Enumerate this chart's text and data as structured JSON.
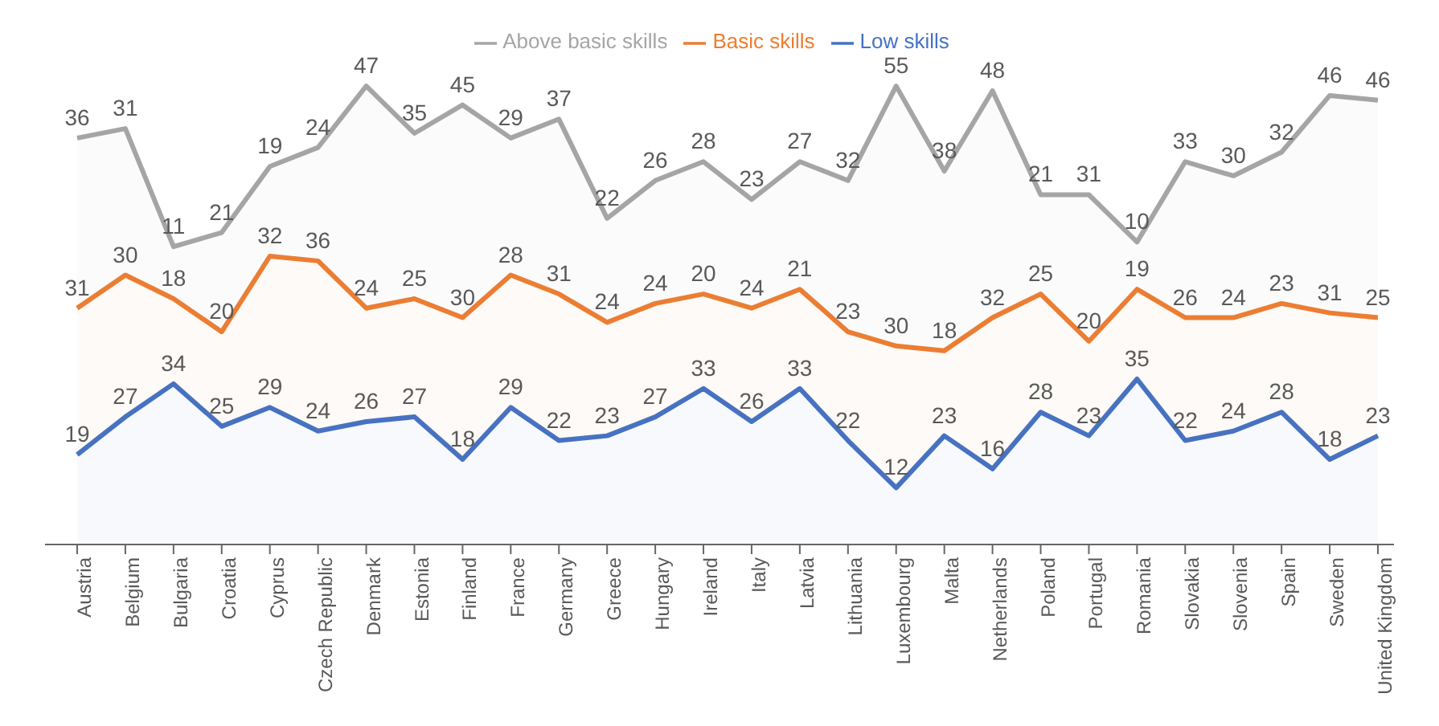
{
  "chart_data": {
    "type": "area",
    "stacked": true,
    "data_labels": true,
    "legend": "top",
    "grid": false,
    "tick_labels": "x",
    "categories": [
      "Austria",
      "Belgium",
      "Bulgaria",
      "Croatia",
      "Cyprus",
      "Czech Republic",
      "Denmark",
      "Estonia",
      "Finland",
      "France",
      "Germany",
      "Greece",
      "Hungary",
      "Ireland",
      "Italy",
      "Latvia",
      "Lithuania",
      "Luxembourg",
      "Malta",
      "Netherlands",
      "Poland",
      "Portugal",
      "Romania",
      "Slovakia",
      "Slovenia",
      "Spain",
      "Sweden",
      "United Kingdom"
    ],
    "series": [
      {
        "name": "Low skills",
        "color": "#4472c4",
        "values": [
          19,
          27,
          34,
          25,
          29,
          24,
          26,
          27,
          18,
          29,
          22,
          23,
          27,
          33,
          26,
          33,
          22,
          12,
          23,
          16,
          28,
          23,
          35,
          22,
          24,
          28,
          18,
          23
        ]
      },
      {
        "name": "Basic skills",
        "color": "#ed7d31",
        "values": [
          31,
          30,
          18,
          20,
          32,
          36,
          24,
          25,
          30,
          28,
          31,
          24,
          24,
          20,
          24,
          21,
          23,
          30,
          18,
          32,
          25,
          20,
          19,
          26,
          24,
          23,
          31,
          25
        ]
      },
      {
        "name": "Above basic skills",
        "color": "#a5a5a5",
        "values": [
          36,
          31,
          11,
          21,
          19,
          24,
          47,
          35,
          45,
          29,
          37,
          22,
          26,
          28,
          23,
          27,
          32,
          55,
          38,
          48,
          21,
          31,
          10,
          33,
          30,
          32,
          46,
          46
        ]
      }
    ]
  }
}
